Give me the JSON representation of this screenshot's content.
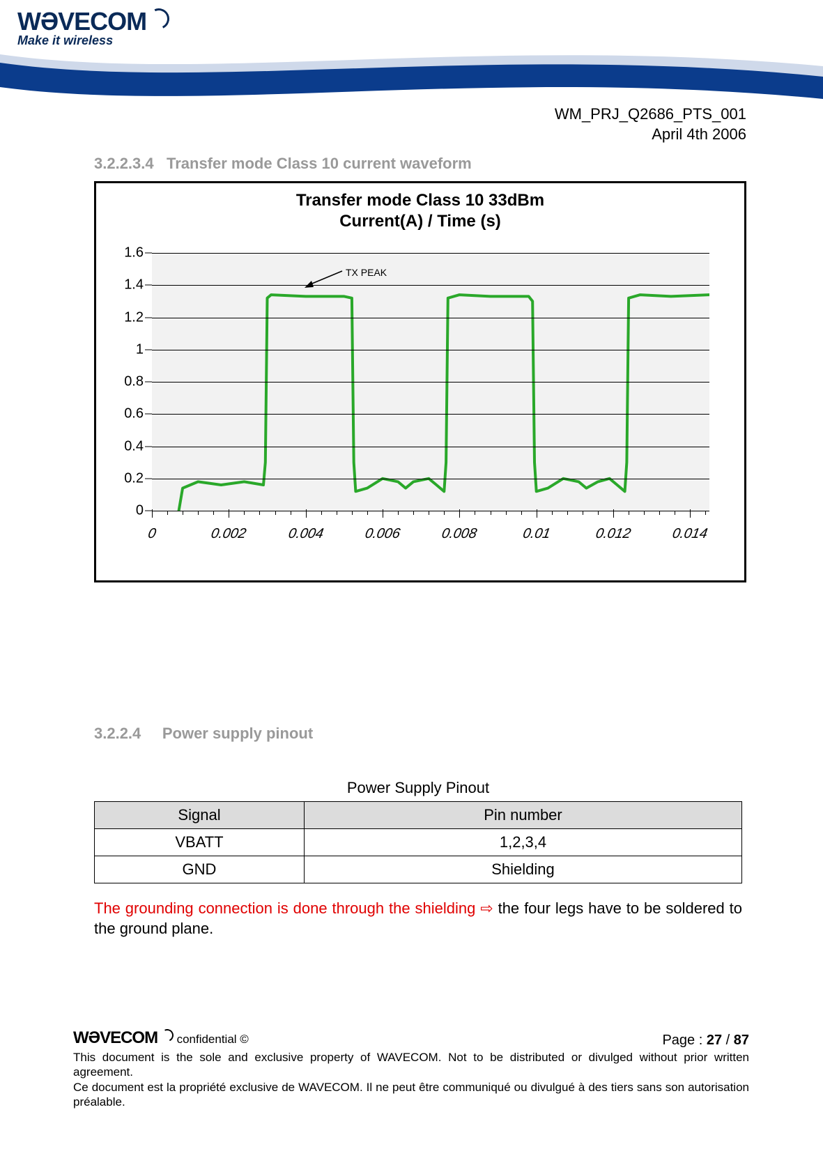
{
  "header": {
    "logo_text": "WƏVECOM",
    "tagline": "Make it wireless"
  },
  "doc": {
    "id": "WM_PRJ_Q2686_PTS_001",
    "date": "April 4th 2006"
  },
  "section1": {
    "number": "3.2.2.3.4",
    "title": "Transfer mode Class 10 current waveform"
  },
  "chart": {
    "title_line1": "Transfer mode Class 10    33dBm",
    "title_line2": "Current(A) / Time (s)",
    "annotation": "TX PEAK",
    "background_color": "#f2f2f2",
    "grid_color": "#000000",
    "line_color": "#2aa82a",
    "line_width": 4,
    "y_ticks": [
      0,
      0.2,
      0.4,
      0.6,
      0.8,
      1,
      1.2,
      1.4,
      1.6
    ],
    "y_labels": [
      "0",
      "0.2",
      "0.4",
      "0.6",
      "0.8",
      "1",
      "1.2",
      "1.4",
      "1.6"
    ],
    "ylim": [
      0,
      1.6
    ],
    "x_ticks": [
      0,
      0.002,
      0.004,
      0.006,
      0.008,
      0.01,
      0.012,
      0.014
    ],
    "x_labels": [
      "0",
      "0.002",
      "0.004",
      "0.006",
      "0.008",
      "0.01",
      "0.012",
      "0.014"
    ],
    "xlim": [
      0,
      0.0145
    ],
    "minor_x_step": 0.0004,
    "series": [
      {
        "x": 0.0007,
        "y": 0.0
      },
      {
        "x": 0.0008,
        "y": 0.14
      },
      {
        "x": 0.0012,
        "y": 0.18
      },
      {
        "x": 0.0018,
        "y": 0.16
      },
      {
        "x": 0.0024,
        "y": 0.18
      },
      {
        "x": 0.0029,
        "y": 0.16
      },
      {
        "x": 0.00295,
        "y": 0.3
      },
      {
        "x": 0.003,
        "y": 1.32
      },
      {
        "x": 0.0031,
        "y": 1.34
      },
      {
        "x": 0.004,
        "y": 1.33
      },
      {
        "x": 0.005,
        "y": 1.33
      },
      {
        "x": 0.0052,
        "y": 1.32
      },
      {
        "x": 0.00525,
        "y": 0.3
      },
      {
        "x": 0.0053,
        "y": 0.12
      },
      {
        "x": 0.0056,
        "y": 0.14
      },
      {
        "x": 0.006,
        "y": 0.2
      },
      {
        "x": 0.0064,
        "y": 0.18
      },
      {
        "x": 0.0066,
        "y": 0.14
      },
      {
        "x": 0.0068,
        "y": 0.18
      },
      {
        "x": 0.0072,
        "y": 0.2
      },
      {
        "x": 0.0074,
        "y": 0.16
      },
      {
        "x": 0.0076,
        "y": 0.12
      },
      {
        "x": 0.00765,
        "y": 0.3
      },
      {
        "x": 0.0077,
        "y": 1.32
      },
      {
        "x": 0.008,
        "y": 1.34
      },
      {
        "x": 0.0088,
        "y": 1.33
      },
      {
        "x": 0.0098,
        "y": 1.33
      },
      {
        "x": 0.0099,
        "y": 1.3
      },
      {
        "x": 0.00995,
        "y": 0.3
      },
      {
        "x": 0.01,
        "y": 0.12
      },
      {
        "x": 0.0103,
        "y": 0.14
      },
      {
        "x": 0.0107,
        "y": 0.2
      },
      {
        "x": 0.0111,
        "y": 0.18
      },
      {
        "x": 0.0113,
        "y": 0.14
      },
      {
        "x": 0.0116,
        "y": 0.18
      },
      {
        "x": 0.0119,
        "y": 0.2
      },
      {
        "x": 0.0121,
        "y": 0.16
      },
      {
        "x": 0.0123,
        "y": 0.12
      },
      {
        "x": 0.01235,
        "y": 0.3
      },
      {
        "x": 0.0124,
        "y": 1.32
      },
      {
        "x": 0.0127,
        "y": 1.34
      },
      {
        "x": 0.0135,
        "y": 1.33
      },
      {
        "x": 0.0145,
        "y": 1.34
      }
    ]
  },
  "section2": {
    "number": "3.2.2.4",
    "title": "Power supply pinout"
  },
  "table": {
    "caption": "Power Supply Pinout",
    "headers": [
      "Signal",
      "Pin number"
    ],
    "rows": [
      [
        "VBATT",
        "1,2,3,4"
      ],
      [
        "GND",
        "Shielding"
      ]
    ]
  },
  "note": {
    "red_part": "The grounding connection is done through the shielding ",
    "arrow": "⇨",
    "black_part": " the four legs have to be soldered to the ground plane."
  },
  "footer": {
    "logo_text": "WƏVECOM",
    "confidential": "confidential ©",
    "page_label": "Page : ",
    "page_current": "27",
    "page_sep": " / ",
    "page_total": "87",
    "line1": "This document is the sole and exclusive property of WAVECOM. Not to be distributed or divulged without prior written agreement.",
    "line2": "Ce document est la propriété exclusive de WAVECOM. Il ne peut être communiqué ou divulgué à des tiers sans son autorisation préalable."
  },
  "colors": {
    "heading_grey": "#999999",
    "red": "#e00000",
    "brand_navy": "#0a2a58",
    "swoosh_blue": "#0b3c8c",
    "swoosh_light": "#cfd9ea"
  }
}
